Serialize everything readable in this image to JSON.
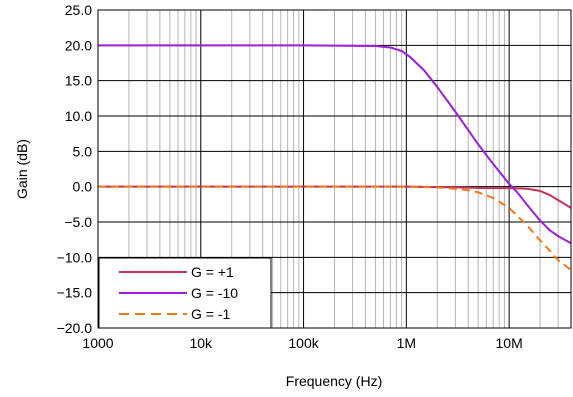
{
  "chart_data": {
    "type": "line",
    "title": "",
    "xlabel": "Frequency (Hz)",
    "ylabel": "Gain (dB)",
    "x_scale": "log",
    "xlim": [
      1000,
      40000000
    ],
    "ylim": [
      -20,
      25
    ],
    "x_ticks": [
      {
        "value": 1000,
        "label": "1000"
      },
      {
        "value": 10000,
        "label": "10k"
      },
      {
        "value": 100000,
        "label": "100k"
      },
      {
        "value": 1000000,
        "label": "1M"
      },
      {
        "value": 10000000,
        "label": "10M"
      }
    ],
    "y_ticks": [
      {
        "value": 25,
        "label": "25.0"
      },
      {
        "value": 20,
        "label": "20.0"
      },
      {
        "value": 15,
        "label": "15.0"
      },
      {
        "value": 10,
        "label": "10.0"
      },
      {
        "value": 5,
        "label": "5.0"
      },
      {
        "value": 0,
        "label": "0.0"
      },
      {
        "value": -5,
        "label": "−5.0"
      },
      {
        "value": -10,
        "label": "−10.0"
      },
      {
        "value": -15,
        "label": "−15.0"
      },
      {
        "value": -20,
        "label": "−20.0"
      }
    ],
    "grid": true,
    "legend_position": "bottom-left",
    "series": [
      {
        "name": "G = +1",
        "color": "#c8325a",
        "dash": "solid",
        "x": [
          1000,
          10000,
          100000,
          1000000,
          3000000,
          6000000,
          10000000,
          15000000,
          20000000,
          25000000,
          30000000,
          40000000
        ],
        "y": [
          0,
          0,
          0,
          0,
          -0.1,
          -0.2,
          -0.2,
          -0.3,
          -0.6,
          -1.2,
          -1.9,
          -3.0
        ]
      },
      {
        "name": "G = -10",
        "color": "#9b1fd6",
        "dash": "solid",
        "x": [
          1000,
          10000,
          100000,
          500000,
          700000,
          900000,
          1100000,
          1500000,
          2000000,
          3000000,
          5000000,
          7000000,
          10000000,
          12000000,
          15000000,
          20000000,
          25000000,
          30000000,
          40000000
        ],
        "y": [
          20,
          20,
          20,
          19.9,
          19.7,
          19.2,
          18.3,
          16.4,
          14.1,
          10.6,
          6.0,
          3.2,
          0.4,
          -0.8,
          -2.6,
          -4.8,
          -6.2,
          -7.0,
          -8.0
        ]
      },
      {
        "name": "G = -1",
        "color": "#f07820",
        "dash": "dashed",
        "x": [
          1000,
          10000,
          100000,
          1000000,
          1500000,
          2000000,
          3000000,
          4000000,
          5000000,
          7000000,
          10000000,
          15000000,
          20000000,
          25000000,
          30000000,
          40000000
        ],
        "y": [
          0,
          0,
          0,
          0,
          -0.05,
          -0.1,
          -0.3,
          -0.5,
          -0.8,
          -1.6,
          -3.0,
          -5.5,
          -7.6,
          -9.1,
          -10.4,
          -11.8
        ]
      }
    ]
  }
}
